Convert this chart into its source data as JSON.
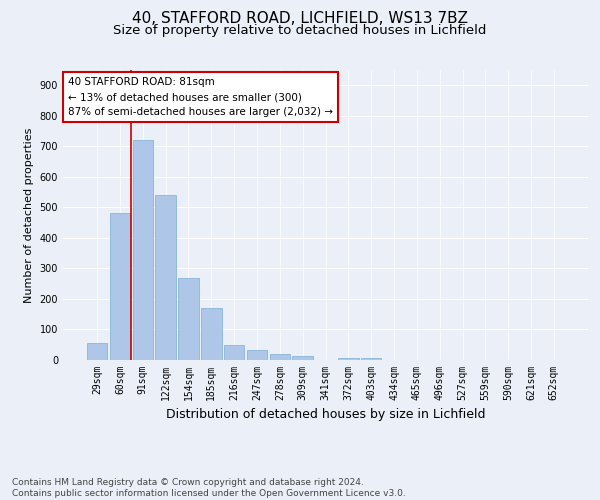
{
  "title_line1": "40, STAFFORD ROAD, LICHFIELD, WS13 7BZ",
  "title_line2": "Size of property relative to detached houses in Lichfield",
  "xlabel": "Distribution of detached houses by size in Lichfield",
  "ylabel": "Number of detached properties",
  "footer": "Contains HM Land Registry data © Crown copyright and database right 2024.\nContains public sector information licensed under the Open Government Licence v3.0.",
  "categories": [
    "29sqm",
    "60sqm",
    "91sqm",
    "122sqm",
    "154sqm",
    "185sqm",
    "216sqm",
    "247sqm",
    "278sqm",
    "309sqm",
    "341sqm",
    "372sqm",
    "403sqm",
    "434sqm",
    "465sqm",
    "496sqm",
    "527sqm",
    "559sqm",
    "590sqm",
    "621sqm",
    "652sqm"
  ],
  "values": [
    55,
    480,
    720,
    540,
    270,
    170,
    48,
    32,
    20,
    12,
    0,
    7,
    7,
    0,
    0,
    0,
    0,
    0,
    0,
    0,
    0
  ],
  "bar_color": "#aec6e8",
  "bar_edge_color": "#7bafd4",
  "annotation_box_text": "40 STAFFORD ROAD: 81sqm\n← 13% of detached houses are smaller (300)\n87% of semi-detached houses are larger (2,032) →",
  "annotation_box_facecolor": "white",
  "annotation_box_edgecolor": "#cc0000",
  "red_line_color": "#cc0000",
  "red_line_x": 1.5,
  "ylim": [
    0,
    950
  ],
  "yticks": [
    0,
    100,
    200,
    300,
    400,
    500,
    600,
    700,
    800,
    900
  ],
  "background_color": "#eaeff8",
  "grid_color": "white",
  "title1_fontsize": 11,
  "title2_fontsize": 9.5,
  "xlabel_fontsize": 9,
  "ylabel_fontsize": 8,
  "tick_fontsize": 7,
  "footer_fontsize": 6.5,
  "annotation_fontsize": 7.5
}
